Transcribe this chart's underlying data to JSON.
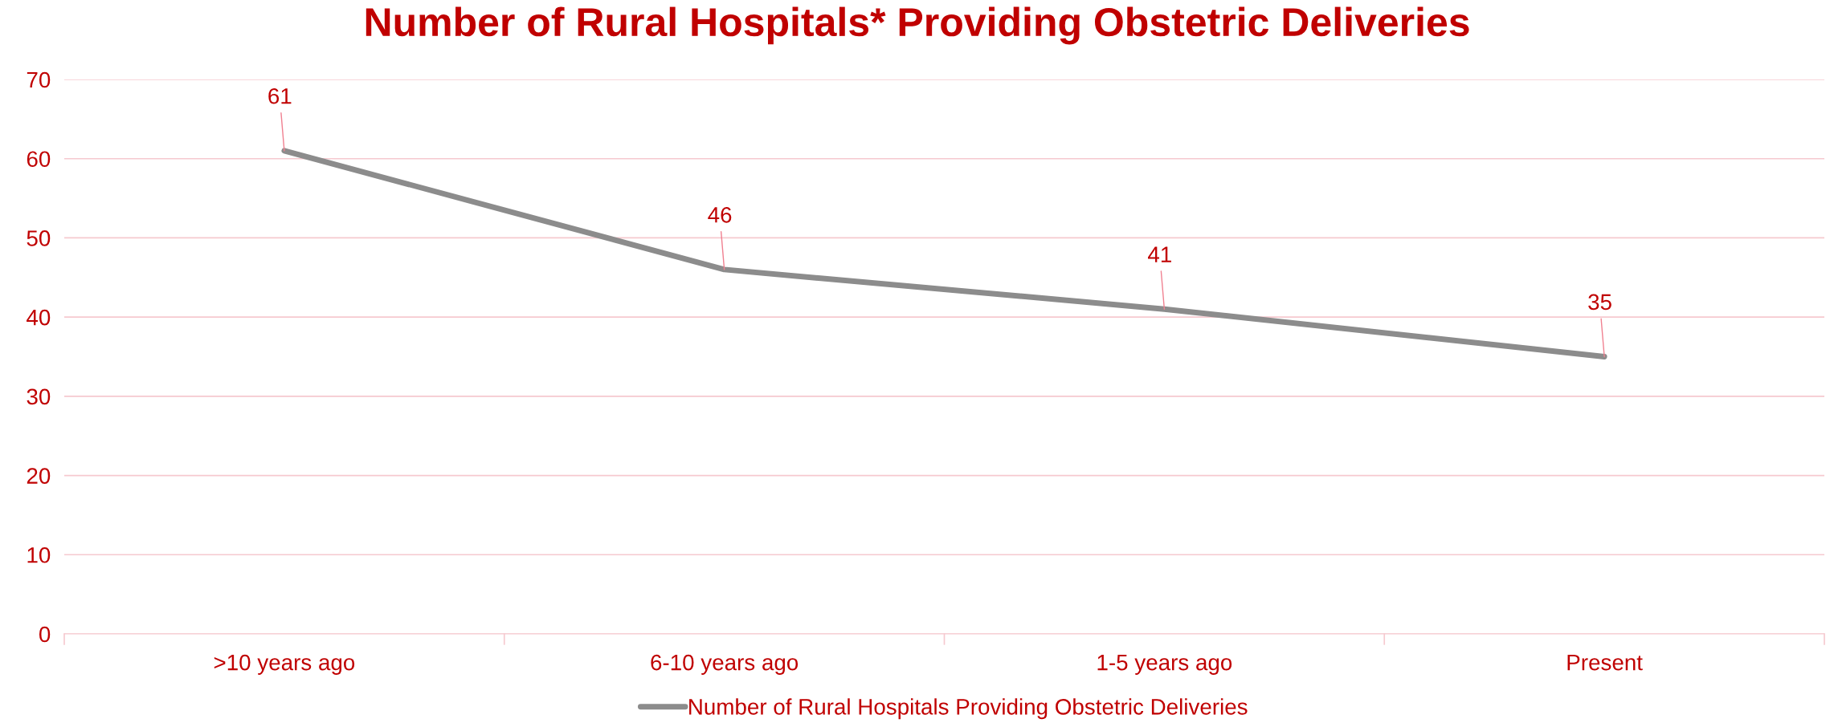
{
  "chart_data": {
    "type": "line",
    "title": "Number of Rural Hospitals* Providing Obstetric Deliveries",
    "categories": [
      ">10 years ago",
      "6-10 years ago",
      "1-5 years ago",
      "Present"
    ],
    "series": [
      {
        "name": "Number of Rural Hospitals Providing Obstetric Deliveries",
        "color": "#8c8c8c",
        "values": [
          61,
          46,
          41,
          35
        ]
      }
    ],
    "ylim": [
      0,
      70
    ],
    "yticks": [
      0,
      10,
      20,
      30,
      40,
      50,
      60,
      70
    ],
    "grid": "y",
    "legend": "bottom",
    "marker": "none",
    "line_style": "solid",
    "data_labels": true
  }
}
